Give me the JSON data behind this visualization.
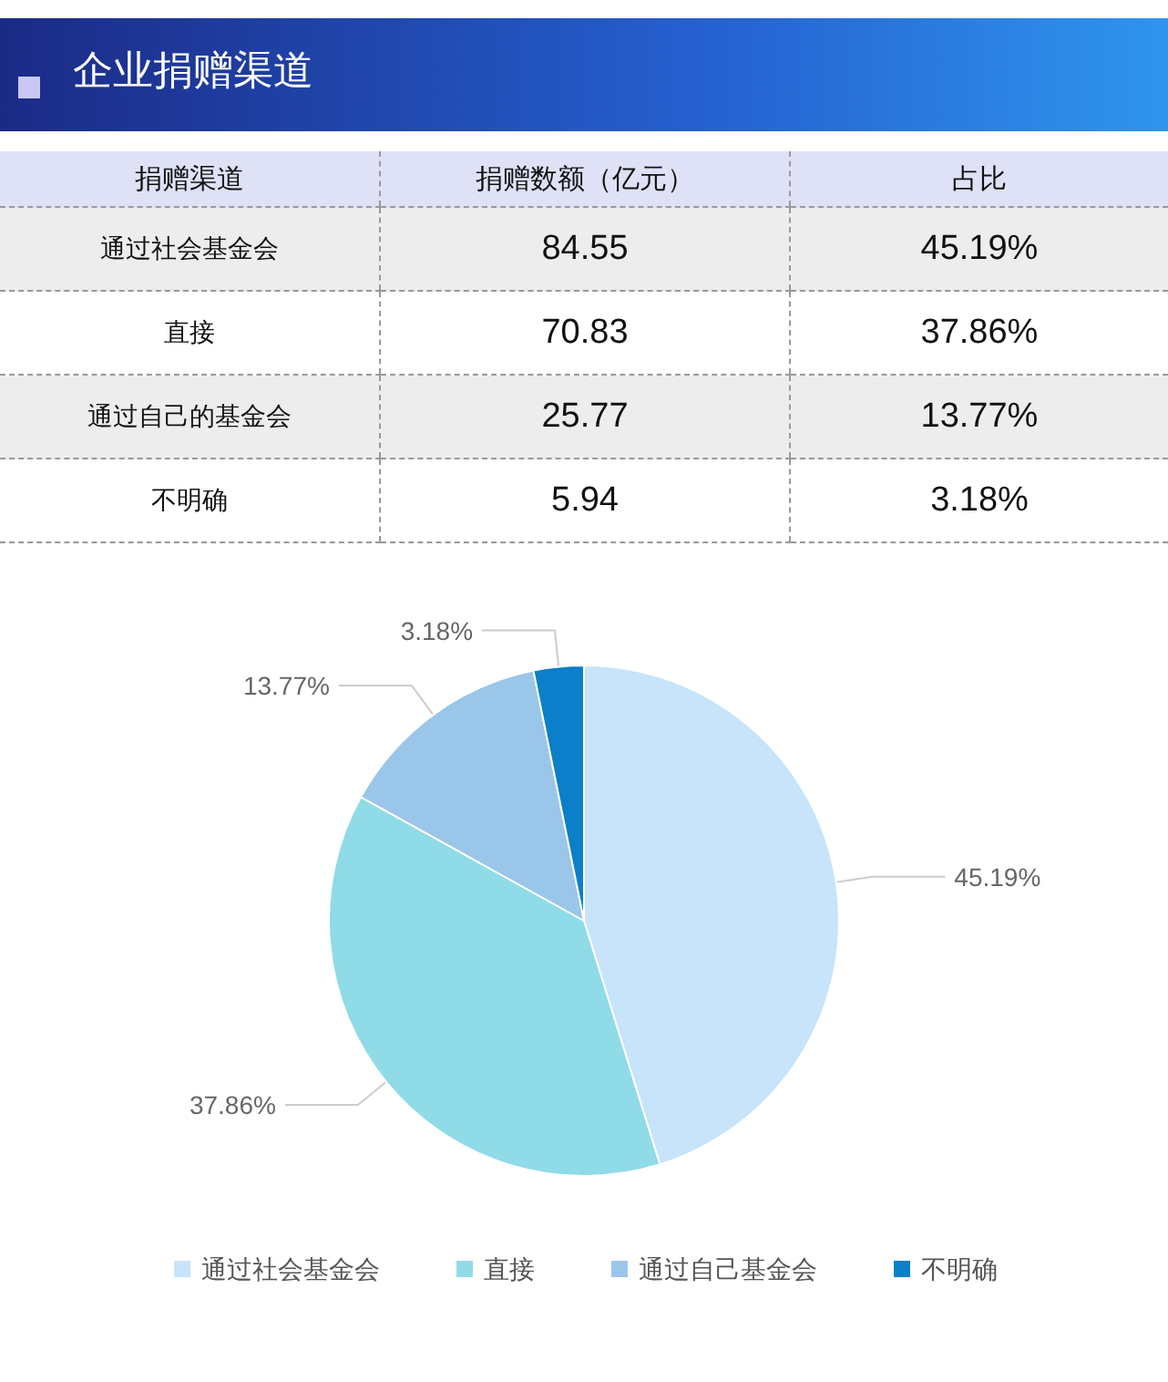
{
  "chart_data": {
    "type": "pie",
    "title": "企业捐赠渠道",
    "categories": [
      "通过社会基金会",
      "直接",
      "通过自己基金会",
      "不明确"
    ],
    "values": [
      45.19,
      37.86,
      13.77,
      3.18
    ],
    "value_labels": [
      "45.19%",
      "37.86%",
      "13.77%",
      "3.18%"
    ],
    "colors": [
      "#c7e4fb",
      "#90dbe8",
      "#9ac6ea",
      "#0b7fca"
    ],
    "annotations": [
      "捐赠渠道",
      "捐赠数额（亿元）",
      "占比",
      "通过社会基金会",
      "直接",
      "通过自己的基金会",
      "不明确",
      "84.55",
      "70.83",
      "25.77",
      "5.94"
    ],
    "legend": "bottom"
  }
}
